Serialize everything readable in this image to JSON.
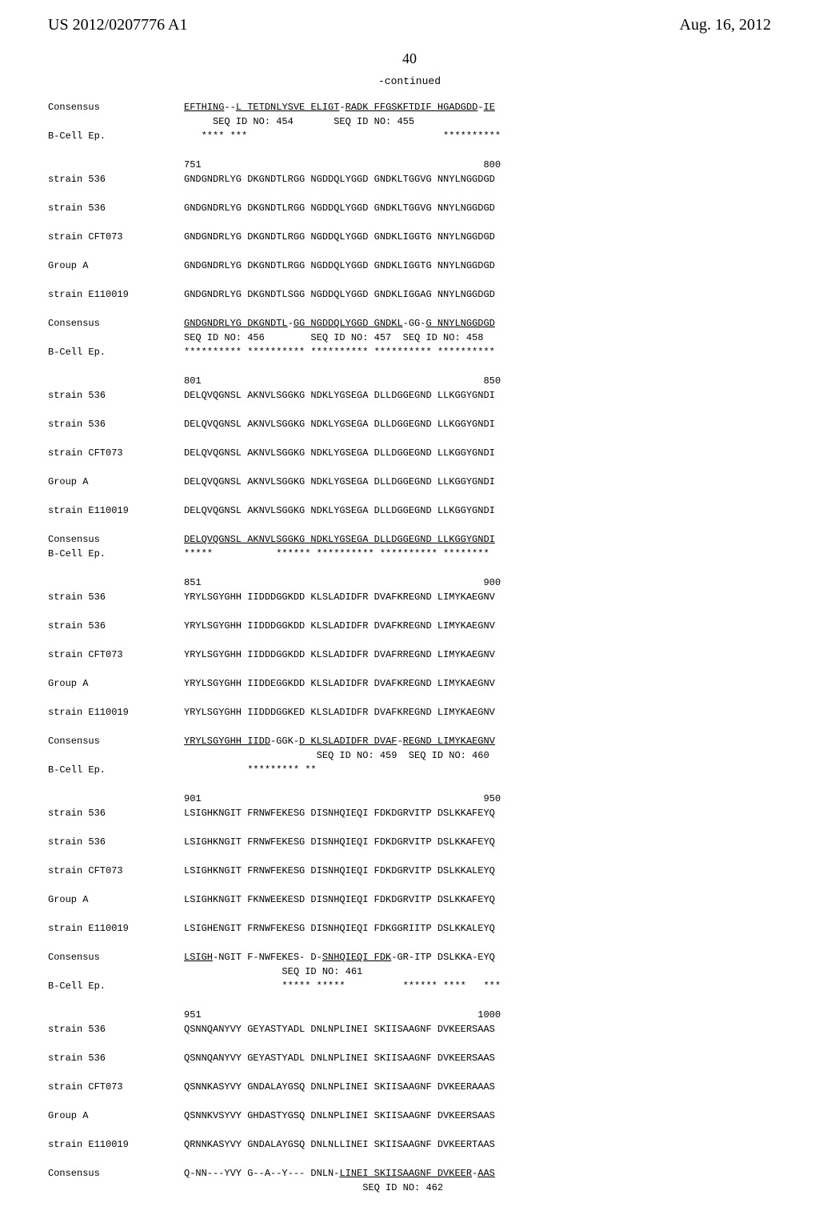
{
  "header": {
    "pubnum": "US 2012/0207776 A1",
    "pubdate": "Aug. 16, 2012"
  },
  "page": "40",
  "continued": "-continued",
  "rows": [
    {
      "label": "Consensus",
      "seq": [
        {
          "u": true,
          "t": "EFTHING"
        },
        {
          "u": false,
          "t": "--"
        },
        {
          "u": true,
          "t": "L TETDNLYSVE ELIGT"
        },
        {
          "u": false,
          "t": "-"
        },
        {
          "u": true,
          "t": "RADK FFGSKFTDIF HGADGDD"
        },
        {
          "u": false,
          "t": "-"
        },
        {
          "u": true,
          "t": "IE"
        }
      ]
    },
    {
      "label": "",
      "seq": [
        {
          "u": false,
          "t": "     SEQ ID NO: 454       SEQ ID NO: 455"
        }
      ]
    },
    {
      "label": "B-Cell Ep.",
      "seq": [
        {
          "u": false,
          "t": "   **** ***                                  **********"
        }
      ]
    },
    {
      "label": "",
      "seq": []
    },
    {
      "label": "",
      "seq": [
        {
          "u": false,
          "t": "751                                                 800"
        }
      ]
    },
    {
      "label": "strain 536",
      "seq": [
        {
          "u": false,
          "t": "GNDGNDRLYG DKGNDTLRGG NGDDQLYGGD GNDKLTGGVG NNYLNGGDGD"
        }
      ]
    },
    {
      "label": "",
      "seq": []
    },
    {
      "label": "strain 536",
      "seq": [
        {
          "u": false,
          "t": "GNDGNDRLYG DKGNDTLRGG NGDDQLYGGD GNDKLTGGVG NNYLNGGDGD"
        }
      ]
    },
    {
      "label": "",
      "seq": []
    },
    {
      "label": "strain CFT073",
      "seq": [
        {
          "u": false,
          "t": "GNDGNDRLYG DKGNDTLRGG NGDDQLYGGD GNDKLIGGTG NNYLNGGDGD"
        }
      ]
    },
    {
      "label": "",
      "seq": []
    },
    {
      "label": "Group A",
      "seq": [
        {
          "u": false,
          "t": "GNDGNDRLYG DKGNDTLRGG NGDDQLYGGD GNDKLIGGTG NNYLNGGDGD"
        }
      ]
    },
    {
      "label": "",
      "seq": []
    },
    {
      "label": "strain E110019",
      "seq": [
        {
          "u": false,
          "t": "GNDGNDRLYG DKGNDTLSGG NGDDQLYGGD GNDKLIGGAG NNYLNGGDGD"
        }
      ]
    },
    {
      "label": "",
      "seq": []
    },
    {
      "label": "Consensus",
      "seq": [
        {
          "u": true,
          "t": "GNDGNDRLYG DKGNDTL"
        },
        {
          "u": false,
          "t": "-"
        },
        {
          "u": true,
          "t": "GG NGDDQLYGGD GNDKL"
        },
        {
          "u": false,
          "t": "-GG-"
        },
        {
          "u": true,
          "t": "G NNYLNGGDGD"
        }
      ]
    },
    {
      "label": "",
      "seq": [
        {
          "u": false,
          "t": "SEQ ID NO: 456        SEQ ID NO: 457  SEQ ID NO: 458"
        }
      ]
    },
    {
      "label": "B-Cell Ep.",
      "seq": [
        {
          "u": false,
          "t": "********** ********** ********** ********** **********"
        }
      ]
    },
    {
      "label": "",
      "seq": []
    },
    {
      "label": "",
      "seq": [
        {
          "u": false,
          "t": "801                                                 850"
        }
      ]
    },
    {
      "label": "strain 536",
      "seq": [
        {
          "u": false,
          "t": "DELQVQGNSL AKNVLSGGKG NDKLYGSEGA DLLDGGEGND LLKGGYGNDI"
        }
      ]
    },
    {
      "label": "",
      "seq": []
    },
    {
      "label": "strain 536",
      "seq": [
        {
          "u": false,
          "t": "DELQVQGNSL AKNVLSGGKG NDKLYGSEGA DLLDGGEGND LLKGGYGNDI"
        }
      ]
    },
    {
      "label": "",
      "seq": []
    },
    {
      "label": "strain CFT073",
      "seq": [
        {
          "u": false,
          "t": "DELQVQGNSL AKNVLSGGKG NDKLYGSEGA DLLDGGEGND LLKGGYGNDI"
        }
      ]
    },
    {
      "label": "",
      "seq": []
    },
    {
      "label": "Group A",
      "seq": [
        {
          "u": false,
          "t": "DELQVQGNSL AKNVLSGGKG NDKLYGSEGA DLLDGGEGND LLKGGYGNDI"
        }
      ]
    },
    {
      "label": "",
      "seq": []
    },
    {
      "label": "strain E110019",
      "seq": [
        {
          "u": false,
          "t": "DELQVQGNSL AKNVLSGGKG NDKLYGSEGA DLLDGGEGND LLKGGYGNDI"
        }
      ]
    },
    {
      "label": "",
      "seq": []
    },
    {
      "label": "Consensus",
      "seq": [
        {
          "u": true,
          "t": "DELQVQGNSL AKNVLSGGKG NDKLYGSEGA DLLDGGEGND LLKGGYGNDI"
        }
      ]
    },
    {
      "label": "B-Cell Ep.",
      "seq": [
        {
          "u": false,
          "t": "*****           ****** ********** ********** ********"
        }
      ]
    },
    {
      "label": "",
      "seq": []
    },
    {
      "label": "",
      "seq": [
        {
          "u": false,
          "t": "851                                                 900"
        }
      ]
    },
    {
      "label": "strain 536",
      "seq": [
        {
          "u": false,
          "t": "YRYLSGYGHH IIDDDGGKDD KLSLADIDFR DVAFKREGND LIMYKAEGNV"
        }
      ]
    },
    {
      "label": "",
      "seq": []
    },
    {
      "label": "strain 536",
      "seq": [
        {
          "u": false,
          "t": "YRYLSGYGHH IIDDDGGKDD KLSLADIDFR DVAFKREGND LIMYKAEGNV"
        }
      ]
    },
    {
      "label": "",
      "seq": []
    },
    {
      "label": "strain CFT073",
      "seq": [
        {
          "u": false,
          "t": "YRYLSGYGHH IIDDDGGKDD KLSLADIDFR DVAFRREGND LIMYKAEGNV"
        }
      ]
    },
    {
      "label": "",
      "seq": []
    },
    {
      "label": "Group A",
      "seq": [
        {
          "u": false,
          "t": "YRYLSGYGHH IIDDEGGKDD KLSLADIDFR DVAFKREGND LIMYKAEGNV"
        }
      ]
    },
    {
      "label": "",
      "seq": []
    },
    {
      "label": "strain E110019",
      "seq": [
        {
          "u": false,
          "t": "YRYLSGYGHH IIDDDGGKED KLSLADIDFR DVAFKREGND LIMYKAEGNV"
        }
      ]
    },
    {
      "label": "",
      "seq": []
    },
    {
      "label": "Consensus",
      "seq": [
        {
          "u": true,
          "t": "YRYLSGYGHH IIDD"
        },
        {
          "u": false,
          "t": "-GGK-"
        },
        {
          "u": true,
          "t": "D KLSLADIDFR DVAF"
        },
        {
          "u": false,
          "t": "-"
        },
        {
          "u": true,
          "t": "REGND LIMYKAEGNV"
        }
      ]
    },
    {
      "label": "",
      "seq": [
        {
          "u": false,
          "t": "                       SEQ ID NO: 459  SEQ ID NO: 460"
        }
      ]
    },
    {
      "label": "B-Cell Ep.",
      "seq": [
        {
          "u": false,
          "t": "           ********* **"
        }
      ]
    },
    {
      "label": "",
      "seq": []
    },
    {
      "label": "",
      "seq": [
        {
          "u": false,
          "t": "901                                                 950"
        }
      ]
    },
    {
      "label": "strain 536",
      "seq": [
        {
          "u": false,
          "t": "LSIGHKNGIT FRNWFEKESG DISNHQIEQI FDKDGRVITP DSLKKAFEYQ"
        }
      ]
    },
    {
      "label": "",
      "seq": []
    },
    {
      "label": "strain 536",
      "seq": [
        {
          "u": false,
          "t": "LSIGHKNGIT FRNWFEKESG DISNHQIEQI FDKDGRVITP DSLKKAFEYQ"
        }
      ]
    },
    {
      "label": "",
      "seq": []
    },
    {
      "label": "strain CFT073",
      "seq": [
        {
          "u": false,
          "t": "LSIGHKNGIT FRNWFEKESG DISNHQIEQI FDKDGRVITP DSLKKALEYQ"
        }
      ]
    },
    {
      "label": "",
      "seq": []
    },
    {
      "label": "Group A",
      "seq": [
        {
          "u": false,
          "t": "LSIGHKNGIT FKNWEEKESD DISNHQIEQI FDKDGRVITP DSLKKAFEYQ"
        }
      ]
    },
    {
      "label": "",
      "seq": []
    },
    {
      "label": "strain E110019",
      "seq": [
        {
          "u": false,
          "t": "LSIGHENGIT FRNWFEKESG DISNHQIEQI FDKGGRIITP DSLKKALEYQ"
        }
      ]
    },
    {
      "label": "",
      "seq": []
    },
    {
      "label": "Consensus",
      "seq": [
        {
          "u": true,
          "t": "LSIGH"
        },
        {
          "u": false,
          "t": "-NGIT F-NWFEKES- D-"
        },
        {
          "u": true,
          "t": "SNHQIEQI FDK"
        },
        {
          "u": false,
          "t": "-GR-ITP DSLKKA-EYQ"
        }
      ]
    },
    {
      "label": "",
      "seq": [
        {
          "u": false,
          "t": "                 SEQ ID NO: 461"
        }
      ]
    },
    {
      "label": "B-Cell Ep.",
      "seq": [
        {
          "u": false,
          "t": "                 ***** *****          ****** ****   ***"
        }
      ]
    },
    {
      "label": "",
      "seq": []
    },
    {
      "label": "",
      "seq": [
        {
          "u": false,
          "t": "951                                                1000"
        }
      ]
    },
    {
      "label": "strain 536",
      "seq": [
        {
          "u": false,
          "t": "QSNNQANYVY GEYASTYADL DNLNPLINEI SKIISAAGNF DVKEERSAAS"
        }
      ]
    },
    {
      "label": "",
      "seq": []
    },
    {
      "label": "strain 536",
      "seq": [
        {
          "u": false,
          "t": "QSNNQANYVY GEYASTYADL DNLNPLINEI SKIISAAGNF DVKEERSAAS"
        }
      ]
    },
    {
      "label": "",
      "seq": []
    },
    {
      "label": "strain CFT073",
      "seq": [
        {
          "u": false,
          "t": "QSNNKASYVY GNDALAYGSQ DNLNPLINEI SKIISAAGNF DVKEERAAAS"
        }
      ]
    },
    {
      "label": "",
      "seq": []
    },
    {
      "label": "Group A",
      "seq": [
        {
          "u": false,
          "t": "QSNNKVSYVY GHDASTYGSQ DNLNPLINEI SKIISAAGNF DVKEERSAAS"
        }
      ]
    },
    {
      "label": "",
      "seq": []
    },
    {
      "label": "strain E110019",
      "seq": [
        {
          "u": false,
          "t": "QRNNKASYVY GNDALAYGSQ DNLNLLINEI SKIISAAGNF DVKEERTAAS"
        }
      ]
    },
    {
      "label": "",
      "seq": []
    },
    {
      "label": "Consensus",
      "seq": [
        {
          "u": false,
          "t": "Q-NN---YVY G--A--Y--- DNLN-"
        },
        {
          "u": true,
          "t": "LINEI SKIISAAGNF DVKEER"
        },
        {
          "u": false,
          "t": "-"
        },
        {
          "u": true,
          "t": "AAS"
        }
      ]
    },
    {
      "label": "",
      "seq": [
        {
          "u": false,
          "t": "                               SEQ ID NO: 462"
        }
      ]
    }
  ]
}
